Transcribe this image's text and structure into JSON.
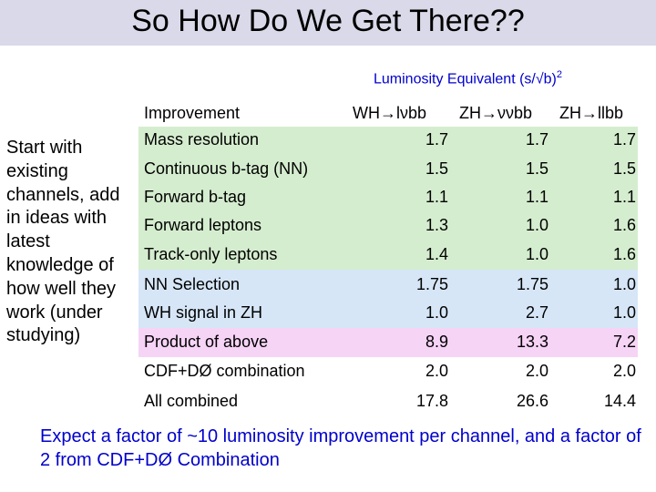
{
  "slide": {
    "title": "So How Do We Get There??",
    "subtitle": "Luminosity Equivalent (s/√b)",
    "subtitle_exp": "2",
    "left_text": "Start with existing channels, add in ideas with latest knowledge of how well they work (under studying)",
    "table": {
      "headers": [
        "Improvement",
        "WH→lνbb",
        "ZH→ννbb",
        "ZH→llbb"
      ],
      "rows": [
        {
          "label": "Mass resolution",
          "values": [
            "1.7",
            "1.7",
            "1.7"
          ]
        },
        {
          "label": "Continuous b-tag (NN)",
          "values": [
            "1.5",
            "1.5",
            "1.5"
          ]
        },
        {
          "label": "Forward b-tag",
          "values": [
            "1.1",
            "1.1",
            "1.1"
          ]
        },
        {
          "label": "Forward leptons",
          "values": [
            "1.3",
            "1.0",
            "1.6"
          ]
        },
        {
          "label": "Track-only leptons",
          "values": [
            "1.4",
            "1.0",
            "1.6"
          ]
        },
        {
          "label": "NN Selection",
          "values": [
            "1.75",
            "1.75",
            "1.0"
          ]
        },
        {
          "label": "WH signal in ZH",
          "values": [
            "1.0",
            "2.7",
            "1.0"
          ]
        },
        {
          "label": "Product of above",
          "values": [
            "8.9",
            "13.3",
            "7.2"
          ]
        },
        {
          "label": "CDF+DØ combination",
          "values": [
            "2.0",
            "2.0",
            "2.0"
          ]
        },
        {
          "label": "All combined",
          "values": [
            "17.8",
            "26.6",
            "14.4"
          ]
        }
      ]
    },
    "footer": "Expect a factor of ~10 luminosity improvement per channel, and a factor of 2 from CDF+DØ Combination",
    "colors": {
      "title_bar": "#d9d9e9",
      "band_green": "#d5edcf",
      "band_blue": "#d6e6f7",
      "band_pink": "#f6d4f6",
      "accent_text": "#0000cc"
    }
  }
}
